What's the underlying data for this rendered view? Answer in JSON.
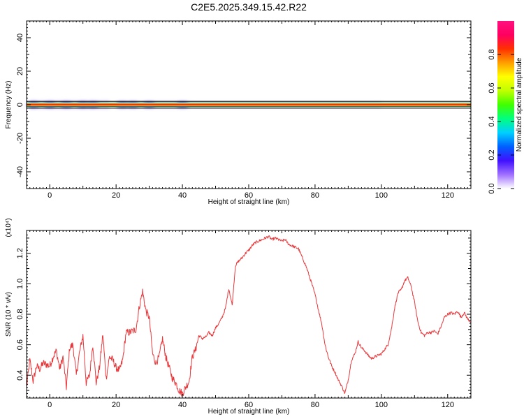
{
  "title": "C2E5.2025.349.15.42.R22",
  "chart_data": [
    {
      "type": "heatmap",
      "xlabel": "Height of straight line (km)",
      "ylabel": "Frequency (Hz)",
      "xlim": [
        -7,
        127
      ],
      "ylim": [
        -50,
        50
      ],
      "x_ticks": [
        0,
        20,
        40,
        60,
        80,
        100,
        120
      ],
      "y_ticks": [
        -40,
        -20,
        0,
        20,
        40
      ],
      "reference_lines_hz": [
        -2,
        2
      ],
      "band_center_hz": 0,
      "colorbar": {
        "label": "Normalized spectral amplitude",
        "range": [
          0,
          1
        ],
        "ticks": [
          0.0,
          0.2,
          0.4,
          0.6,
          0.8
        ],
        "tick_labels": [
          "0.0",
          "0.2",
          "0.4",
          "0.6",
          "0.8"
        ],
        "colormap": [
          "#ffffff",
          "#a070ff",
          "#4010ff",
          "#0060ff",
          "#00d0ff",
          "#00ff80",
          "#40ff00",
          "#c0ff00",
          "#ffff00",
          "#ffa000",
          "#ff3000",
          "#ff0060",
          "#ff1080"
        ]
      }
    },
    {
      "type": "line",
      "xlabel": "Height of straight line (km)",
      "ylabel": "SNR (10 * v/v)",
      "y_multiplier": "(x10⁴)",
      "xlim": [
        -7,
        127
      ],
      "ylim": [
        0.25,
        1.35
      ],
      "x_ticks": [
        0,
        20,
        40,
        60,
        80,
        100,
        120
      ],
      "y_ticks": [
        0.4,
        0.6,
        0.8,
        1.0,
        1.2
      ],
      "y_tick_labels": [
        "0.4",
        "0.6",
        "0.8",
        "1.0",
        "1.2"
      ],
      "series": [
        {
          "name": "SNR",
          "color": "#e8383b",
          "x": [
            -7,
            -6,
            -5,
            -4,
            -3,
            -2,
            -1,
            0,
            1,
            2,
            3,
            4,
            5,
            6,
            7,
            8,
            9,
            10,
            11,
            12,
            13,
            14,
            15,
            16,
            17,
            18,
            19,
            20,
            21,
            22,
            23,
            24,
            25,
            26,
            27,
            28,
            29,
            30,
            31,
            32,
            33,
            34,
            35,
            36,
            37,
            38,
            39,
            40,
            41,
            42,
            43,
            44,
            45,
            46,
            47,
            48,
            49,
            50,
            51,
            52,
            53,
            54,
            55,
            56,
            57,
            58,
            59,
            60,
            61,
            62,
            63,
            64,
            65,
            66,
            67,
            68,
            69,
            70,
            71,
            72,
            73,
            74,
            75,
            76,
            77,
            78,
            79,
            80,
            81,
            82,
            83,
            84,
            85,
            86,
            87,
            88,
            89,
            90,
            91,
            92,
            93,
            94,
            95,
            96,
            97,
            98,
            99,
            100,
            101,
            102,
            103,
            104,
            105,
            106,
            107,
            108,
            109,
            110,
            111,
            112,
            113,
            114,
            115,
            116,
            117,
            118,
            119,
            120,
            121,
            122,
            123,
            124,
            125,
            126,
            127
          ],
          "y": [
            0.32,
            0.5,
            0.36,
            0.46,
            0.44,
            0.48,
            0.47,
            0.46,
            0.52,
            0.56,
            0.44,
            0.52,
            0.32,
            0.58,
            0.6,
            0.4,
            0.55,
            0.66,
            0.35,
            0.4,
            0.6,
            0.35,
            0.45,
            0.67,
            0.38,
            0.52,
            0.5,
            0.45,
            0.43,
            0.5,
            0.68,
            0.68,
            0.69,
            0.7,
            0.85,
            0.95,
            0.82,
            0.78,
            0.54,
            0.48,
            0.52,
            0.64,
            0.52,
            0.45,
            0.38,
            0.35,
            0.3,
            0.28,
            0.32,
            0.36,
            0.52,
            0.57,
            0.66,
            0.64,
            0.65,
            0.68,
            0.66,
            0.71,
            0.74,
            0.78,
            0.84,
            0.97,
            0.86,
            1.12,
            1.15,
            1.17,
            1.2,
            1.22,
            1.25,
            1.27,
            1.28,
            1.29,
            1.3,
            1.31,
            1.29,
            1.3,
            1.29,
            1.28,
            1.29,
            1.26,
            1.25,
            1.24,
            1.23,
            1.18,
            1.13,
            1.07,
            1.0,
            0.93,
            0.83,
            0.74,
            0.6,
            0.52,
            0.46,
            0.42,
            0.37,
            0.33,
            0.28,
            0.37,
            0.5,
            0.54,
            0.62,
            0.58,
            0.56,
            0.53,
            0.51,
            0.52,
            0.53,
            0.54,
            0.57,
            0.6,
            0.7,
            0.84,
            0.94,
            0.96,
            1.02,
            1.04,
            0.98,
            0.88,
            0.75,
            0.68,
            0.66,
            0.68,
            0.68,
            0.69,
            0.67,
            0.72,
            0.78,
            0.8,
            0.81,
            0.8,
            0.82,
            0.78,
            0.81,
            0.77,
            0.75
          ]
        }
      ]
    }
  ]
}
